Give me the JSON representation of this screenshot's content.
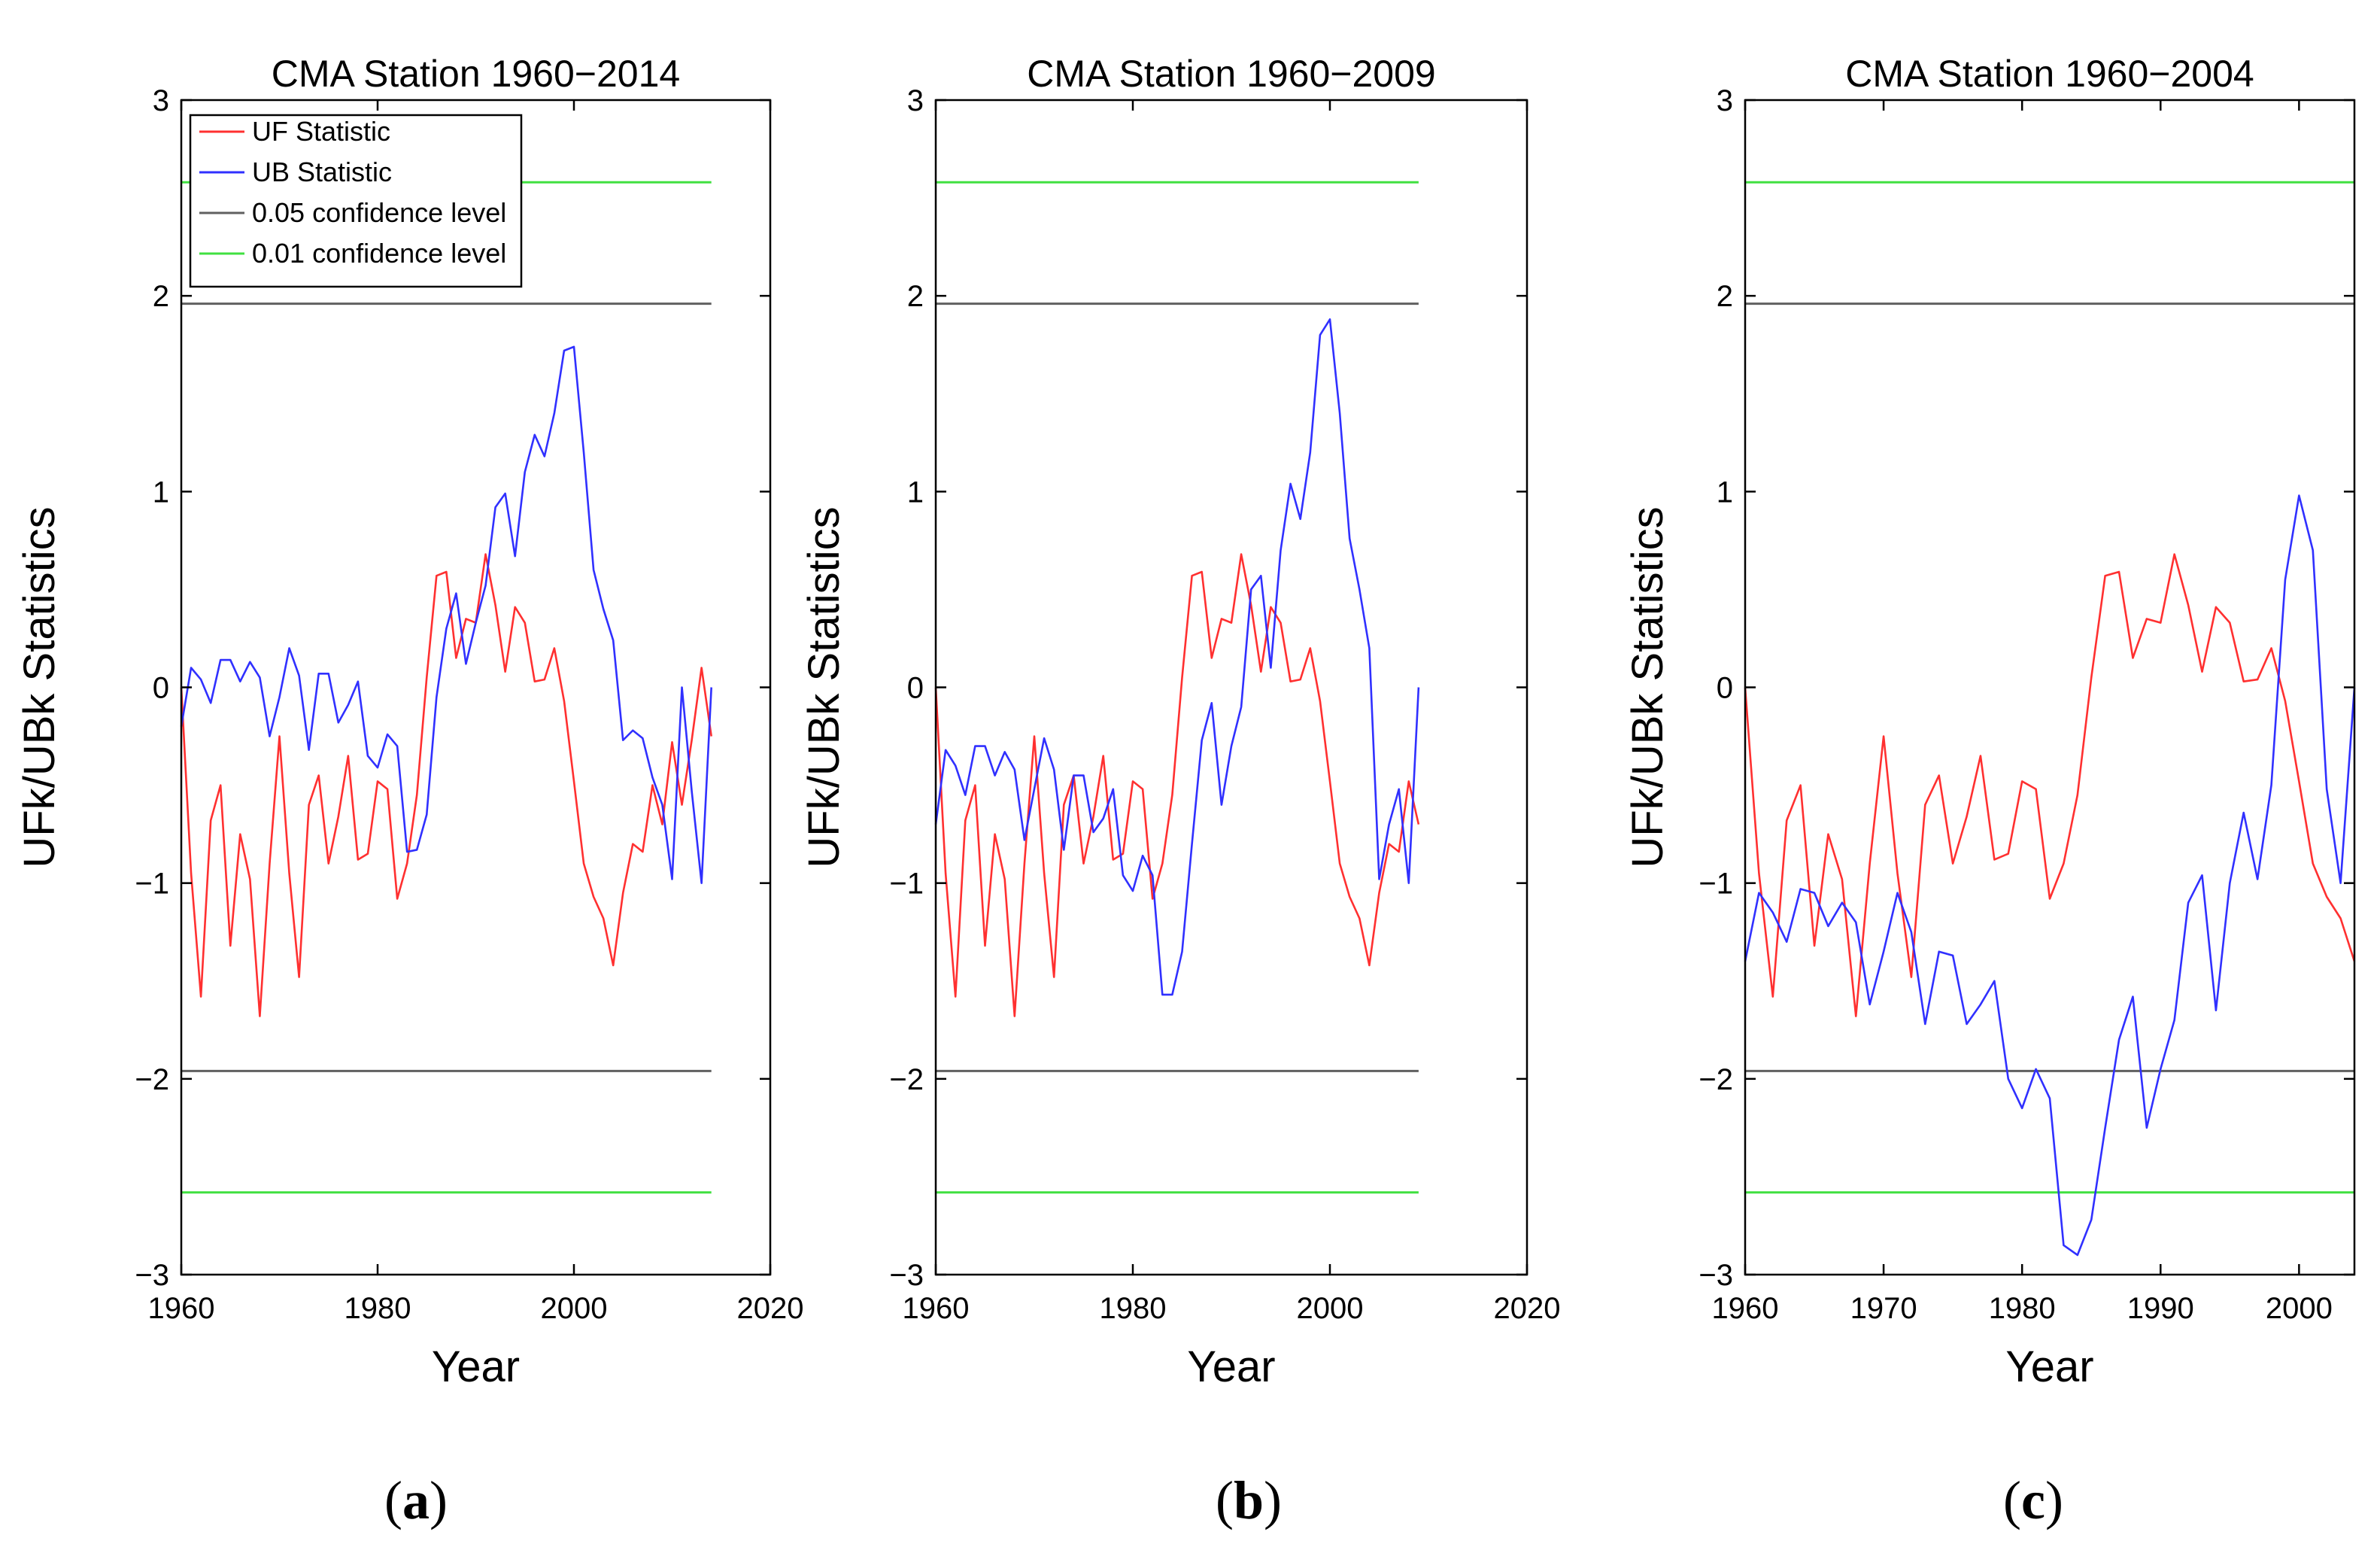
{
  "figure": {
    "y_label": "UFk/UBk Statistics",
    "x_label": "Year",
    "legend": {
      "entries": [
        {
          "label": "UF Statistic",
          "color": "#ff3030"
        },
        {
          "label": "UB Statistic",
          "color": "#3030ff"
        },
        {
          "label": "0.05 confidence level",
          "color": "#606060"
        },
        {
          "label": "0.01 confidence level",
          "color": "#40e040"
        }
      ]
    }
  },
  "chart_data": [
    {
      "type": "line",
      "panel": "a",
      "sub_label": {
        "open": "(",
        "letter": "a",
        "close": ")"
      },
      "title": "CMA Station 1960−2014",
      "xlabel": "Year",
      "ylabel": "UFk/UBk Statistics",
      "xlim": [
        1960,
        2020
      ],
      "ylim": [
        -3,
        3
      ],
      "xticks": [
        1960,
        1980,
        2000,
        2020
      ],
      "yticks": [
        -3,
        -2,
        -1,
        0,
        1,
        2,
        3
      ],
      "ytick_labels": [
        "−3",
        "−2",
        "−1",
        "0",
        "1",
        "2",
        "3"
      ],
      "legend_position": "top-left",
      "reference_lines": [
        {
          "name": "0.05 confidence level",
          "values": [
            1.96,
            -1.96
          ],
          "color": "#606060"
        },
        {
          "name": "0.01 confidence level",
          "values": [
            2.58,
            -2.58
          ],
          "color": "#40e040"
        }
      ],
      "series": [
        {
          "name": "UF Statistic",
          "color": "#ff3030",
          "x_start": 1960,
          "values": [
            0,
            -0.95,
            -1.58,
            -0.68,
            -0.5,
            -1.32,
            -0.75,
            -0.98,
            -1.68,
            -0.9,
            -0.25,
            -0.95,
            -1.48,
            -0.6,
            -0.45,
            -0.9,
            -0.66,
            -0.35,
            -0.88,
            -0.85,
            -0.48,
            -0.52,
            -1.08,
            -0.9,
            -0.55,
            0.05,
            0.57,
            0.59,
            0.15,
            0.35,
            0.33,
            0.68,
            0.42,
            0.08,
            0.41,
            0.33,
            0.03,
            0.04,
            0.2,
            -0.07,
            -0.48,
            -0.9,
            -1.07,
            -1.18,
            -1.42,
            -1.05,
            -0.8,
            -0.84,
            -0.5,
            -0.7,
            -0.28,
            -0.6,
            -0.27,
            0.1,
            -0.25
          ]
        },
        {
          "name": "UB Statistic",
          "color": "#3030ff",
          "x_start": 1960,
          "values": [
            -0.2,
            0.1,
            0.04,
            -0.08,
            0.14,
            0.14,
            0.03,
            0.13,
            0.05,
            -0.25,
            -0.05,
            0.2,
            0.06,
            -0.32,
            0.07,
            0.07,
            -0.18,
            -0.09,
            0.03,
            -0.35,
            -0.41,
            -0.24,
            -0.3,
            -0.84,
            -0.83,
            -0.65,
            -0.05,
            0.3,
            0.48,
            0.12,
            0.33,
            0.52,
            0.92,
            0.99,
            0.67,
            1.1,
            1.29,
            1.18,
            1.4,
            1.72,
            1.74,
            1.2,
            0.6,
            0.4,
            0.24,
            -0.27,
            -0.22,
            -0.26,
            -0.46,
            -0.6,
            -0.98,
            0,
            -0.53,
            -1,
            0
          ]
        }
      ]
    },
    {
      "type": "line",
      "panel": "b",
      "sub_label": {
        "open": "(",
        "letter": "b",
        "close": ")"
      },
      "title": "CMA Station 1960−2009",
      "xlabel": "Year",
      "ylabel": "UFk/UBk Statistics",
      "xlim": [
        1960,
        2020
      ],
      "ylim": [
        -3,
        3
      ],
      "xticks": [
        1960,
        1980,
        2000,
        2020
      ],
      "yticks": [
        -3,
        -2,
        -1,
        0,
        1,
        2,
        3
      ],
      "ytick_labels": [
        "−3",
        "−2",
        "−1",
        "0",
        "1",
        "2",
        "3"
      ],
      "reference_lines": [
        {
          "name": "0.05 confidence level",
          "values": [
            1.96,
            -1.96
          ],
          "color": "#606060"
        },
        {
          "name": "0.01 confidence level",
          "values": [
            2.58,
            -2.58
          ],
          "color": "#40e040"
        }
      ],
      "series": [
        {
          "name": "UF Statistic",
          "color": "#ff3030",
          "x_start": 1960,
          "values": [
            0,
            -0.95,
            -1.58,
            -0.68,
            -0.5,
            -1.32,
            -0.75,
            -0.98,
            -1.68,
            -0.9,
            -0.25,
            -0.95,
            -1.48,
            -0.6,
            -0.45,
            -0.9,
            -0.66,
            -0.35,
            -0.88,
            -0.85,
            -0.48,
            -0.52,
            -1.08,
            -0.9,
            -0.55,
            0.05,
            0.57,
            0.59,
            0.15,
            0.35,
            0.33,
            0.68,
            0.42,
            0.08,
            0.41,
            0.33,
            0.03,
            0.04,
            0.2,
            -0.07,
            -0.48,
            -0.9,
            -1.07,
            -1.18,
            -1.42,
            -1.05,
            -0.8,
            -0.84,
            -0.48,
            -0.7
          ]
        },
        {
          "name": "UB Statistic",
          "color": "#3030ff",
          "x_start": 1960,
          "values": [
            -0.7,
            -0.32,
            -0.4,
            -0.55,
            -0.3,
            -0.3,
            -0.45,
            -0.33,
            -0.42,
            -0.78,
            -0.52,
            -0.26,
            -0.42,
            -0.83,
            -0.45,
            -0.45,
            -0.74,
            -0.67,
            -0.52,
            -0.96,
            -1.04,
            -0.86,
            -0.96,
            -1.57,
            -1.57,
            -1.35,
            -0.8,
            -0.27,
            -0.08,
            -0.6,
            -0.3,
            -0.1,
            0.5,
            0.57,
            0.1,
            0.7,
            1.04,
            0.86,
            1.2,
            1.8,
            1.88,
            1.4,
            0.76,
            0.5,
            0.2,
            -0.98,
            -0.7,
            -0.52,
            -1,
            0
          ]
        }
      ]
    },
    {
      "type": "line",
      "panel": "c",
      "sub_label": {
        "open": "(",
        "letter": "c",
        "close": ")"
      },
      "title": "CMA Station 1960−2004",
      "xlabel": "Year",
      "ylabel": "UFk/UBk Statistics",
      "xlim": [
        1960,
        2004
      ],
      "ylim": [
        -3,
        3
      ],
      "xticks": [
        1960,
        1970,
        1980,
        1990,
        2000
      ],
      "yticks": [
        -3,
        -2,
        -1,
        0,
        1,
        2,
        3
      ],
      "ytick_labels": [
        "−3",
        "−2",
        "−1",
        "0",
        "1",
        "2",
        "3"
      ],
      "reference_lines": [
        {
          "name": "0.05 confidence level",
          "values": [
            1.96,
            -1.96
          ],
          "color": "#606060"
        },
        {
          "name": "0.01 confidence level",
          "values": [
            2.58,
            -2.58
          ],
          "color": "#40e040"
        }
      ],
      "series": [
        {
          "name": "UF Statistic",
          "color": "#ff3030",
          "x_start": 1960,
          "values": [
            0,
            -0.95,
            -1.58,
            -0.68,
            -0.5,
            -1.32,
            -0.75,
            -0.98,
            -1.68,
            -0.9,
            -0.25,
            -0.95,
            -1.48,
            -0.6,
            -0.45,
            -0.9,
            -0.66,
            -0.35,
            -0.88,
            -0.85,
            -0.48,
            -0.52,
            -1.08,
            -0.9,
            -0.55,
            0.05,
            0.57,
            0.59,
            0.15,
            0.35,
            0.33,
            0.68,
            0.42,
            0.08,
            0.41,
            0.33,
            0.03,
            0.04,
            0.2,
            -0.07,
            -0.48,
            -0.9,
            -1.07,
            -1.18,
            -1.4
          ]
        },
        {
          "name": "UB Statistic",
          "color": "#3030ff",
          "x_start": 1960,
          "values": [
            -1.4,
            -1.05,
            -1.15,
            -1.3,
            -1.03,
            -1.05,
            -1.22,
            -1.1,
            -1.2,
            -1.62,
            -1.35,
            -1.05,
            -1.25,
            -1.72,
            -1.35,
            -1.37,
            -1.72,
            -1.62,
            -1.5,
            -2,
            -2.15,
            -1.95,
            -2.1,
            -2.85,
            -2.9,
            -2.72,
            -2.25,
            -1.8,
            -1.58,
            -2.25,
            -1.95,
            -1.7,
            -1.1,
            -0.96,
            -1.65,
            -1,
            -0.64,
            -0.98,
            -0.5,
            0.55,
            0.98,
            0.7,
            -0.52,
            -1,
            0
          ]
        }
      ]
    }
  ]
}
